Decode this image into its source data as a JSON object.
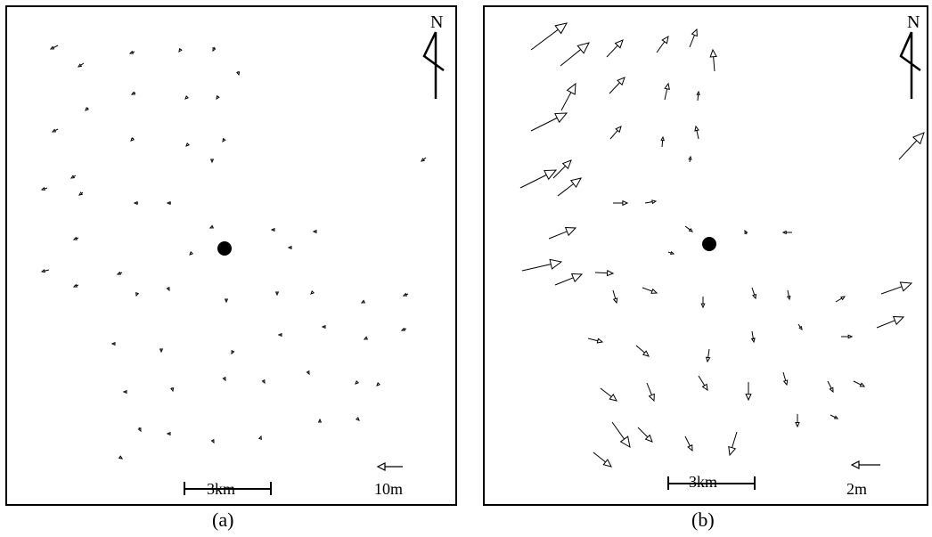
{
  "panels": [
    {
      "id": "a",
      "caption": "(a)",
      "north_label": "N",
      "scale_bar_label": "3km",
      "reference_vector_label": "10m",
      "arrows": [
        [
          57,
          43,
          -8,
          4
        ],
        [
          86,
          63,
          -6,
          4
        ],
        [
          143,
          50,
          -5,
          2
        ],
        [
          195,
          47,
          -2,
          3
        ],
        [
          233,
          45,
          -2,
          4
        ],
        [
          259,
          72,
          1,
          4
        ],
        [
          91,
          113,
          -3,
          3
        ],
        [
          144,
          96,
          -4,
          2
        ],
        [
          202,
          101,
          -2,
          2
        ],
        [
          237,
          100,
          -2,
          3
        ],
        [
          57,
          137,
          -6,
          3
        ],
        [
          142,
          147,
          -3,
          3
        ],
        [
          202,
          155,
          -1,
          1
        ],
        [
          244,
          148,
          -2,
          3
        ],
        [
          230,
          173,
          0,
          1
        ],
        [
          470,
          169,
          -5,
          4
        ],
        [
          77,
          189,
          -5,
          3
        ],
        [
          45,
          203,
          -6,
          2
        ],
        [
          85,
          208,
          -4,
          3
        ],
        [
          147,
          220,
          -4,
          0
        ],
        [
          184,
          220,
          -4,
          0
        ],
        [
          230,
          247,
          -2,
          1
        ],
        [
          298,
          250,
          -1,
          0
        ],
        [
          346,
          252,
          -2,
          0
        ],
        [
          80,
          259,
          -5,
          2
        ],
        [
          206,
          277,
          -1,
          1
        ],
        [
          47,
          295,
          -8,
          2
        ],
        [
          129,
          298,
          -5,
          2
        ],
        [
          318,
          270,
          -2,
          0
        ],
        [
          80,
          312,
          -5,
          2
        ],
        [
          146,
          321,
          -1,
          3
        ],
        [
          181,
          316,
          1,
          2
        ],
        [
          246,
          329,
          0,
          2
        ],
        [
          303,
          321,
          0,
          2
        ],
        [
          342,
          321,
          -1,
          1
        ],
        [
          400,
          331,
          -2,
          1
        ],
        [
          450,
          322,
          -5,
          2
        ],
        [
          121,
          378,
          -3,
          0
        ],
        [
          173,
          385,
          0,
          2
        ],
        [
          253,
          387,
          -1,
          2
        ],
        [
          306,
          368,
          -1,
          0
        ],
        [
          356,
          359,
          -2,
          0
        ],
        [
          403,
          372,
          -2,
          1
        ],
        [
          448,
          361,
          -5,
          2
        ],
        [
          133,
          432,
          -2,
          0
        ],
        [
          185,
          427,
          1,
          4
        ],
        [
          244,
          417,
          1,
          2
        ],
        [
          288,
          420,
          1,
          2
        ],
        [
          338,
          410,
          1,
          2
        ],
        [
          392,
          422,
          -1,
          1
        ],
        [
          416,
          424,
          -1,
          1
        ],
        [
          148,
          472,
          2,
          4
        ],
        [
          181,
          479,
          -1,
          0
        ],
        [
          231,
          487,
          1,
          2
        ],
        [
          284,
          485,
          1,
          -3
        ],
        [
          351,
          465,
          0,
          -2
        ],
        [
          394,
          463,
          1,
          1
        ],
        [
          126,
          505,
          3,
          2
        ]
      ]
    },
    {
      "id": "b",
      "caption": "(b)",
      "north_label": "N",
      "scale_bar_label": "3km",
      "reference_vector_label": "2m",
      "arrows": [
        [
          52,
          48,
          40,
          -30
        ],
        [
          85,
          66,
          32,
          -26
        ],
        [
          137,
          56,
          18,
          -19
        ],
        [
          193,
          51,
          13,
          -18
        ],
        [
          230,
          45,
          8,
          -20
        ],
        [
          258,
          72,
          -2,
          -24
        ],
        [
          86,
          116,
          16,
          -30
        ],
        [
          140,
          97,
          17,
          -18
        ],
        [
          202,
          104,
          4,
          -18
        ],
        [
          239,
          105,
          1,
          -10
        ],
        [
          52,
          139,
          40,
          -20
        ],
        [
          141,
          148,
          12,
          -14
        ],
        [
          199,
          157,
          1,
          -11
        ],
        [
          240,
          148,
          -3,
          -14
        ],
        [
          230,
          174,
          1,
          -6
        ],
        [
          465,
          171,
          28,
          -30
        ],
        [
          77,
          192,
          20,
          -20
        ],
        [
          40,
          203,
          40,
          -20
        ],
        [
          82,
          212,
          26,
          -20
        ],
        [
          144,
          220,
          16,
          0
        ],
        [
          180,
          220,
          12,
          -2
        ],
        [
          225,
          246,
          8,
          6
        ],
        [
          294,
          255,
          -2,
          -4
        ],
        [
          345,
          253,
          -10,
          0
        ],
        [
          72,
          260,
          30,
          -12
        ],
        [
          206,
          275,
          6,
          2
        ],
        [
          42,
          296,
          44,
          -10
        ],
        [
          124,
          298,
          20,
          1
        ],
        [
          79,
          312,
          30,
          -12
        ],
        [
          144,
          318,
          4,
          14
        ],
        [
          177,
          315,
          16,
          6
        ],
        [
          245,
          325,
          0,
          12
        ],
        [
          300,
          315,
          4,
          12
        ],
        [
          340,
          318,
          2,
          10
        ],
        [
          394,
          331,
          10,
          -6
        ],
        [
          445,
          322,
          34,
          -12
        ],
        [
          116,
          372,
          16,
          4
        ],
        [
          170,
          380,
          14,
          12
        ],
        [
          252,
          384,
          -2,
          14
        ],
        [
          300,
          364,
          2,
          12
        ],
        [
          352,
          356,
          4,
          6
        ],
        [
          400,
          370,
          12,
          0
        ],
        [
          440,
          360,
          30,
          -12
        ],
        [
          130,
          428,
          18,
          14
        ],
        [
          182,
          422,
          8,
          20
        ],
        [
          240,
          414,
          10,
          16
        ],
        [
          296,
          421,
          0,
          20
        ],
        [
          335,
          410,
          4,
          14
        ],
        [
          385,
          420,
          6,
          12
        ],
        [
          414,
          420,
          12,
          6
        ],
        [
          143,
          466,
          20,
          28
        ],
        [
          172,
          472,
          16,
          16
        ],
        [
          225,
          482,
          8,
          16
        ],
        [
          283,
          477,
          -8,
          26
        ],
        [
          351,
          457,
          0,
          14
        ],
        [
          388,
          458,
          8,
          4
        ],
        [
          122,
          500,
          20,
          16
        ]
      ]
    }
  ]
}
